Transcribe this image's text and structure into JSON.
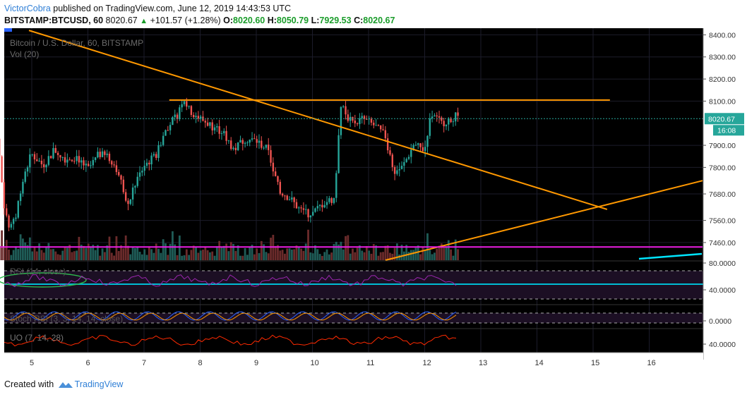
{
  "header": {
    "author": "VictorCobra",
    "published": "published on TradingView.com, June 12, 2019 14:43:53 UTC",
    "symbol": "BITSTAMP:BTCUSD, 60",
    "last": "8020.67",
    "change": "+101.57 (+1.28%)",
    "o_label": "O:",
    "o": "8020.60",
    "h_label": "H:",
    "h": "8050.79",
    "l_label": "L:",
    "l": "7929.53",
    "c_label": "C:",
    "c": "8020.67"
  },
  "legend": {
    "title": "Bitcoin / U.S. Dollar, 60, BITSTAMP",
    "volume": "Vol (20)",
    "rsi": "RSI (14, close)",
    "stoch": "Stoch RSI (3, 3, 14, 14, close)",
    "uo": "UO (7, 14, 28)"
  },
  "footer": {
    "created_with": "Created with",
    "brand": "TradingView"
  },
  "colors": {
    "background": "#000000",
    "up_candle": "#26a69a",
    "down_candle": "#ef5350",
    "trendline": "#ff9800",
    "support_line": "#e91ee3",
    "rsi_line": "#9c27b0",
    "rsi_mid": "#00bcd4",
    "stoch_k": "#2962ff",
    "stoch_d": "#ff9800",
    "uo_line": "#ff2a00",
    "price_tag": "#26a69a"
  },
  "chart_data": {
    "type": "candlestick",
    "title": "Bitcoin / U.S. Dollar, 60, BITSTAMP",
    "price_axis": {
      "ticks": [
        8400,
        8300,
        8200,
        8100,
        7900,
        7800,
        7680,
        7560,
        7460
      ],
      "labels": [
        "8400.00",
        "8300.00",
        "8200.00",
        "8100.00",
        "7900.00",
        "7800.00",
        "7680.00",
        "7560.00",
        "7460.00"
      ],
      "range": [
        7380,
        8430
      ]
    },
    "last_price": {
      "value": 8020.67,
      "label": "8020.67",
      "countdown": "16:08"
    },
    "time_axis": {
      "labels": [
        "5",
        "6",
        "7",
        "8",
        "9",
        "10",
        "11",
        "12",
        "13",
        "14",
        "15",
        "16"
      ]
    },
    "price_path": {
      "day": [
        4.3,
        4.4,
        4.5,
        4.6,
        4.7,
        4.8,
        4.9,
        5.0,
        5.2,
        5.4,
        5.6,
        5.8,
        6.0,
        6.2,
        6.4,
        6.6,
        6.7,
        6.8,
        7.0,
        7.2,
        7.4,
        7.6,
        7.7,
        7.8,
        8.0,
        8.2,
        8.4,
        8.6,
        8.8,
        9.0,
        9.2,
        9.4,
        9.6,
        9.8,
        10.0,
        10.2,
        10.4,
        10.45,
        10.5,
        10.7,
        10.9,
        11.1,
        11.3,
        11.45,
        11.6,
        11.8,
        12.0,
        12.1,
        12.3,
        12.6
      ],
      "price": [
        8000,
        7920,
        7640,
        7520,
        7560,
        7700,
        7800,
        7860,
        7810,
        7880,
        7840,
        7850,
        7790,
        7860,
        7840,
        7760,
        7600,
        7700,
        7810,
        7850,
        7980,
        8040,
        8120,
        8060,
        8020,
        7990,
        7960,
        7880,
        7930,
        7920,
        7880,
        7700,
        7660,
        7600,
        7590,
        7640,
        7660,
        7900,
        8080,
        8000,
        8020,
        7990,
        7940,
        7780,
        7800,
        7900,
        7880,
        8040,
        8000,
        8040
      ]
    },
    "volume": {
      "label": "Vol (20)"
    },
    "trendlines": [
      {
        "name": "descending resistance",
        "from": [
          "4.95",
          8420
        ],
        "to": [
          "15.25",
          7610
        ]
      },
      {
        "name": "horizontal resistance",
        "from": [
          "7.45",
          8105
        ],
        "to": [
          "15.3",
          8105
        ]
      },
      {
        "name": "ascending support",
        "from": [
          "11.3",
          7380
        ],
        "to": [
          "16.95",
          7740
        ]
      },
      {
        "name": "horizontal support",
        "from": [
          "4.3",
          7440
        ],
        "to": [
          "16.95",
          7440
        ]
      }
    ],
    "rsi": {
      "label": "RSI (14, close)",
      "ticks": [
        "80.0000",
        "40.0000"
      ],
      "bands": [
        70,
        30
      ],
      "mid": 50
    },
    "stoch_rsi": {
      "label": "Stoch RSI (3, 3, 14, 14, close)",
      "ticks": [
        "0.0000"
      ]
    },
    "uo": {
      "label": "UO (7, 14, 28)",
      "ticks": [
        "40.0000"
      ]
    }
  }
}
